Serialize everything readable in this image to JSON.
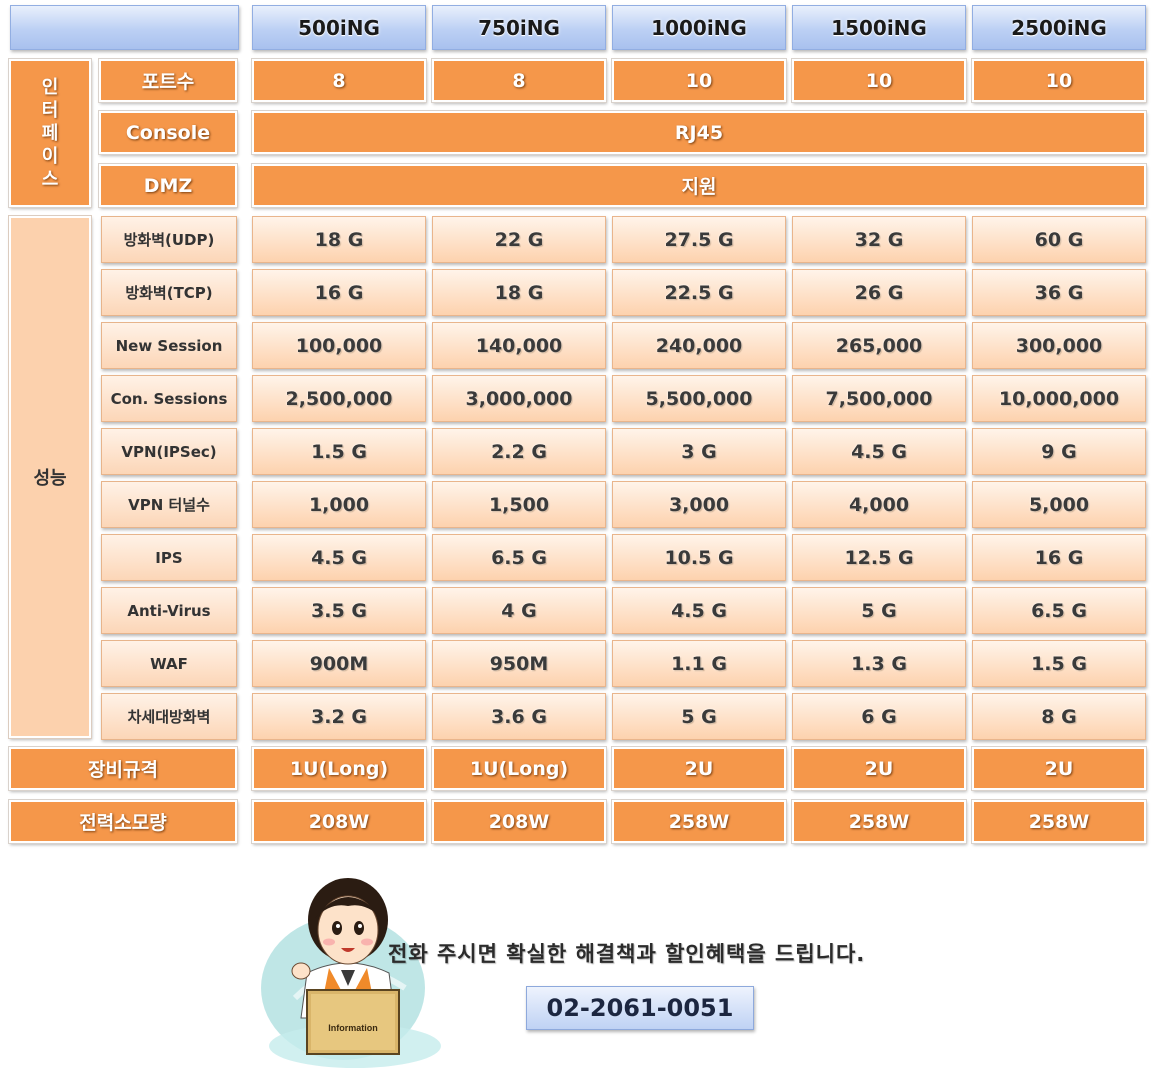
{
  "header": {
    "models": [
      "500iNG",
      "750iNG",
      "1000iNG",
      "1500iNG",
      "2500iNG"
    ]
  },
  "interface": {
    "group_label": "인터페이스",
    "group_chars": [
      "인",
      "터",
      "페",
      "이",
      "스"
    ],
    "rows": [
      {
        "label": "포트수",
        "values": [
          "8",
          "8",
          "10",
          "10",
          "10"
        ]
      },
      {
        "label": "Console",
        "value": "RJ45"
      },
      {
        "label": "DMZ",
        "value": "지원"
      }
    ]
  },
  "performance": {
    "group_label": "성능",
    "rows": [
      {
        "label": "방화벽(UDP)",
        "values": [
          "18 G",
          "22 G",
          "27.5 G",
          "32 G",
          "60 G"
        ]
      },
      {
        "label": "방화벽(TCP)",
        "values": [
          "16 G",
          "18 G",
          "22.5 G",
          "26 G",
          "36 G"
        ]
      },
      {
        "label": "New Session",
        "values": [
          "100,000",
          "140,000",
          "240,000",
          "265,000",
          "300,000"
        ]
      },
      {
        "label": "Con. Sessions",
        "values": [
          "2,500,000",
          "3,000,000",
          "5,500,000",
          "7,500,000",
          "10,000,000"
        ]
      },
      {
        "label": "VPN(IPSec)",
        "values": [
          "1.5 G",
          "2.2 G",
          "3 G",
          "4.5 G",
          "9 G"
        ]
      },
      {
        "label": "VPN 터널수",
        "values": [
          "1,000",
          "1,500",
          "3,000",
          "4,000",
          "5,000"
        ]
      },
      {
        "label": "IPS",
        "values": [
          "4.5 G",
          "6.5 G",
          "10.5 G",
          "12.5 G",
          "16 G"
        ]
      },
      {
        "label": "Anti-Virus",
        "values": [
          "3.5 G",
          "4 G",
          "4.5 G",
          "5 G",
          "6.5 G"
        ]
      },
      {
        "label": "WAF",
        "values": [
          "900M",
          "950M",
          "1.1 G",
          "1.3 G",
          "1.5 G"
        ]
      },
      {
        "label": "차세대방화벽",
        "values": [
          "3.2 G",
          "3.6 G",
          "5 G",
          "6 G",
          "8 G"
        ]
      }
    ]
  },
  "hardware": {
    "rows": [
      {
        "label": "장비규격",
        "values": [
          "1U(Long)",
          "1U(Long)",
          "2U",
          "2U",
          "2U"
        ]
      },
      {
        "label": "전력소모량",
        "values": [
          "208W",
          "208W",
          "258W",
          "258W",
          "258W"
        ]
      }
    ]
  },
  "contact": {
    "message": "전화 주시면 확실한 해결책과 할인혜택을 드립니다.",
    "phone": "02-2061-0051",
    "sign_text": "Information"
  },
  "colors": {
    "header_blue": "#bcd0f4",
    "orange_dark": "#f5974a",
    "orange_light": "#fdd2ae"
  }
}
